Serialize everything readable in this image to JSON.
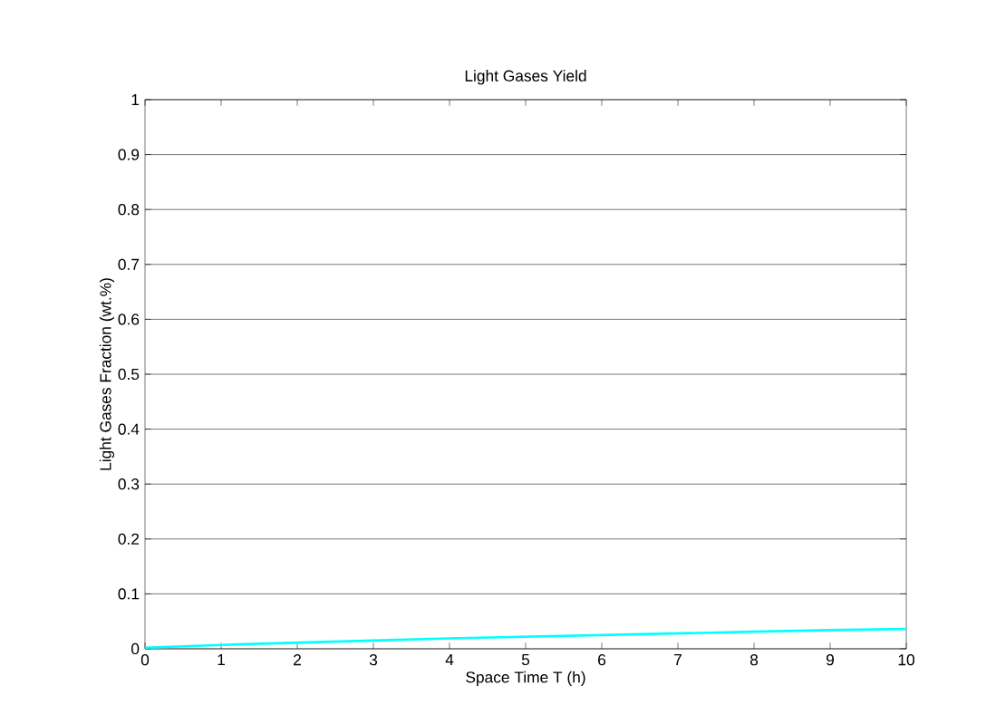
{
  "chart_data": {
    "type": "line",
    "title": "Light Gases Yield",
    "xlabel": "Space Time T (h)",
    "ylabel": "Light Gases Fraction (wt.%)",
    "x": [
      0,
      1,
      2,
      3,
      4,
      5,
      6,
      7,
      8,
      9,
      10
    ],
    "series": [
      {
        "color": "#00ffff",
        "values": [
          0.002,
          0.007,
          0.011,
          0.015,
          0.019,
          0.022,
          0.025,
          0.028,
          0.031,
          0.034,
          0.036
        ]
      }
    ],
    "xlim": [
      0,
      10
    ],
    "ylim": [
      0,
      1
    ],
    "xticks": [
      0,
      1,
      2,
      3,
      4,
      5,
      6,
      7,
      8,
      9,
      10
    ],
    "yticks": [
      0,
      0.1,
      0.2,
      0.3,
      0.4,
      0.5,
      0.6,
      0.7,
      0.8,
      0.9,
      1
    ],
    "grid": "y",
    "marker": "none",
    "line_style": "solid"
  }
}
